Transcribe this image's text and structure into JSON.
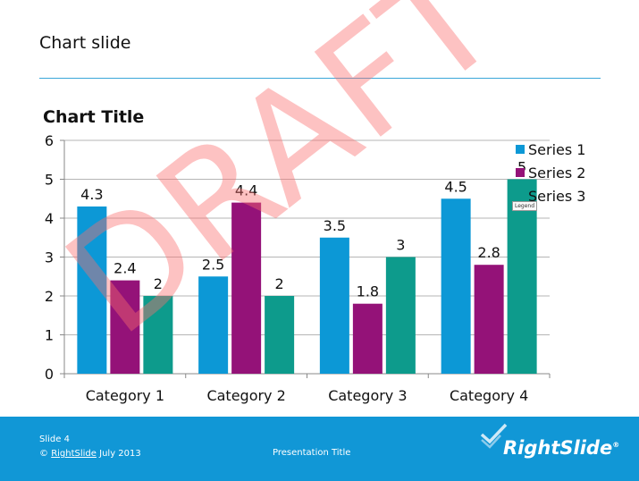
{
  "slide": {
    "title": "Chart slide",
    "footer": {
      "slide_number": "Slide 4",
      "copyright_symbol": "©",
      "brand": "RightSlide",
      "date": "July 2013",
      "presentation_title": "Presentation Title",
      "logo_text": "RightSlide",
      "logo_mark": "®"
    },
    "watermark": "DRAFT",
    "tooltip": "Legend"
  },
  "colors": {
    "series1": "#0c98d6",
    "series2": "#941278",
    "series3": "#0d9b8c",
    "footer": "#1197d6",
    "watermark": "#fa6e6e"
  },
  "chart_data": {
    "type": "bar",
    "title": "Chart Title",
    "categories": [
      "Category 1",
      "Category 2",
      "Category 3",
      "Category 4"
    ],
    "series": [
      {
        "name": "Series 1",
        "values": [
          4.3,
          2.5,
          3.5,
          4.5
        ]
      },
      {
        "name": "Series 2",
        "values": [
          2.4,
          4.4,
          1.8,
          2.8
        ]
      },
      {
        "name": "Series 3",
        "values": [
          2,
          2,
          3,
          5
        ]
      }
    ],
    "ylim": [
      0,
      6
    ],
    "yticks": [
      "0",
      "1",
      "2",
      "3",
      "4",
      "5",
      "6"
    ],
    "data_labels": [
      [
        "4.3",
        "2.4",
        "2"
      ],
      [
        "2.5",
        "4.4",
        "2"
      ],
      [
        "3.5",
        "1.8",
        "3"
      ],
      [
        "4.5",
        "2.8",
        "5"
      ]
    ],
    "grid": true,
    "legend_position": "right"
  }
}
